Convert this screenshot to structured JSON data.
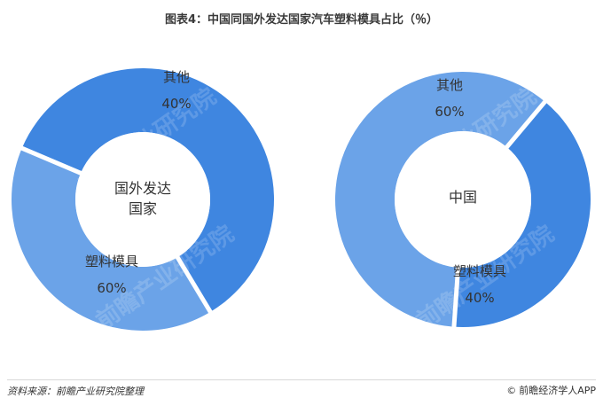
{
  "title": "图表4：中国同国外发达国家汽车塑料模具占比（％）",
  "footer": {
    "source": "资料来源：前瞻产业研究院整理",
    "brand_icon": "©",
    "brand": "前瞻经济学人APP"
  },
  "watermark": "前瞻产业研究院",
  "colors": {
    "light_blue": "#6ba3e8",
    "dark_blue": "#3f86e0",
    "hole": "#ffffff",
    "separator": "#ffffff",
    "label_text": "#333333"
  },
  "chart_data": [
    {
      "type": "pie",
      "center_label": "国外发达国家",
      "slices": [
        {
          "label": "其他",
          "value": 40,
          "value_label": "40%",
          "color": "#6ba3e8"
        },
        {
          "label": "塑料模具",
          "value": 60,
          "value_label": "60%",
          "color": "#3f86e0"
        }
      ]
    },
    {
      "type": "pie",
      "center_label": "中国",
      "slices": [
        {
          "label": "其他",
          "value": 60,
          "value_label": "60%",
          "color": "#6ba3e8"
        },
        {
          "label": "塑料模具",
          "value": 40,
          "value_label": "40%",
          "color": "#3f86e0"
        }
      ]
    }
  ]
}
